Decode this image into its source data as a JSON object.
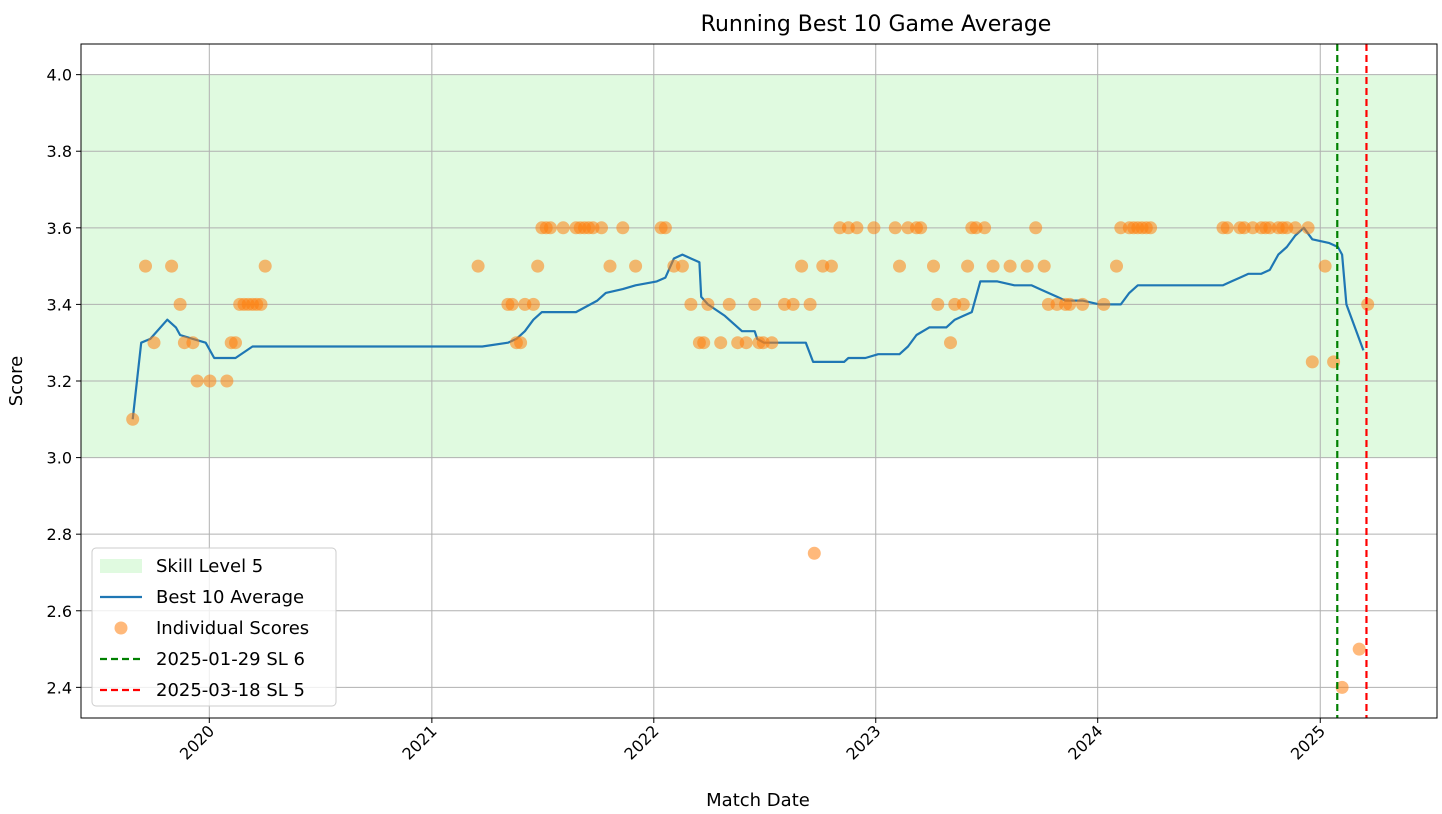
{
  "chart_data": {
    "type": "line",
    "title": "Running Best 10 Game Average",
    "xlabel": "Match Date",
    "ylabel": "Score",
    "xlim": [
      "2019-06-04",
      "2025-07-12"
    ],
    "ylim": [
      2.32,
      4.08
    ],
    "x_ticks": [
      "2020",
      "2021",
      "2022",
      "2023",
      "2024",
      "2025"
    ],
    "y_ticks": [
      "2.4",
      "2.6",
      "2.8",
      "3.0",
      "3.2",
      "3.4",
      "3.6",
      "3.8",
      "4.0"
    ],
    "grid": true,
    "legend_position": "lower-left",
    "band": {
      "name": "Skill Level 5",
      "y0": 3.0,
      "y1": 4.0,
      "color": "#90ee90"
    },
    "series": [
      {
        "name": "Best 10 Average",
        "kind": "line",
        "color": "#1f77b4",
        "points": [
          [
            "2019-08-28",
            3.1
          ],
          [
            "2019-09-11",
            3.3
          ],
          [
            "2019-09-26",
            3.31
          ],
          [
            "2019-10-24",
            3.36
          ],
          [
            "2019-11-07",
            3.34
          ],
          [
            "2019-11-14",
            3.32
          ],
          [
            "2019-12-05",
            3.31
          ],
          [
            "2019-12-26",
            3.3
          ],
          [
            "2020-01-09",
            3.26
          ],
          [
            "2020-02-13",
            3.26
          ],
          [
            "2020-03-12",
            3.29
          ],
          [
            "2021-03-25",
            3.29
          ],
          [
            "2021-05-06",
            3.3
          ],
          [
            "2021-05-20",
            3.31
          ],
          [
            "2021-06-03",
            3.33
          ],
          [
            "2021-06-17",
            3.36
          ],
          [
            "2021-07-01",
            3.38
          ],
          [
            "2021-08-26",
            3.38
          ],
          [
            "2021-09-30",
            3.41
          ],
          [
            "2021-10-14",
            3.43
          ],
          [
            "2021-11-11",
            3.44
          ],
          [
            "2021-12-02",
            3.45
          ],
          [
            "2022-01-06",
            3.46
          ],
          [
            "2022-01-20",
            3.47
          ],
          [
            "2022-02-03",
            3.52
          ],
          [
            "2022-02-17",
            3.53
          ],
          [
            "2022-03-03",
            3.52
          ],
          [
            "2022-03-17",
            3.51
          ],
          [
            "2022-03-20",
            3.42
          ],
          [
            "2022-03-31",
            3.4
          ],
          [
            "2022-04-28",
            3.37
          ],
          [
            "2022-05-26",
            3.33
          ],
          [
            "2022-06-16",
            3.33
          ],
          [
            "2022-06-20",
            3.31
          ],
          [
            "2022-07-01",
            3.3
          ],
          [
            "2022-09-08",
            3.3
          ],
          [
            "2022-09-20",
            3.25
          ],
          [
            "2022-10-27",
            3.25
          ],
          [
            "2022-11-10",
            3.25
          ],
          [
            "2022-11-17",
            3.26
          ],
          [
            "2022-12-15",
            3.26
          ],
          [
            "2023-01-05",
            3.27
          ],
          [
            "2023-02-09",
            3.27
          ],
          [
            "2023-02-23",
            3.29
          ],
          [
            "2023-03-09",
            3.32
          ],
          [
            "2023-03-30",
            3.34
          ],
          [
            "2023-04-27",
            3.34
          ],
          [
            "2023-05-11",
            3.36
          ],
          [
            "2023-05-25",
            3.37
          ],
          [
            "2023-06-08",
            3.38
          ],
          [
            "2023-06-22",
            3.46
          ],
          [
            "2023-07-20",
            3.46
          ],
          [
            "2023-08-17",
            3.45
          ],
          [
            "2023-09-14",
            3.45
          ],
          [
            "2023-09-28",
            3.44
          ],
          [
            "2023-10-26",
            3.42
          ],
          [
            "2023-11-09",
            3.41
          ],
          [
            "2023-12-07",
            3.41
          ],
          [
            "2024-01-04",
            3.4
          ],
          [
            "2024-01-25",
            3.4
          ],
          [
            "2024-02-08",
            3.4
          ],
          [
            "2024-02-22",
            3.43
          ],
          [
            "2024-03-07",
            3.45
          ],
          [
            "2024-07-25",
            3.45
          ],
          [
            "2024-08-08",
            3.46
          ],
          [
            "2024-08-22",
            3.47
          ],
          [
            "2024-09-05",
            3.48
          ],
          [
            "2024-09-26",
            3.48
          ],
          [
            "2024-10-10",
            3.49
          ],
          [
            "2024-10-24",
            3.53
          ],
          [
            "2024-11-07",
            3.55
          ],
          [
            "2024-11-21",
            3.58
          ],
          [
            "2024-12-05",
            3.6
          ],
          [
            "2024-12-19",
            3.57
          ],
          [
            "2025-01-16",
            3.56
          ],
          [
            "2025-01-30",
            3.55
          ],
          [
            "2025-02-06",
            3.53
          ],
          [
            "2025-02-13",
            3.4
          ],
          [
            "2025-03-13",
            3.28
          ]
        ]
      },
      {
        "name": "Individual Scores",
        "kind": "scatter",
        "color": "#ff7f0e",
        "points": [
          [
            "2019-08-28",
            3.1
          ],
          [
            "2019-09-18",
            3.5
          ],
          [
            "2019-10-02",
            3.3
          ],
          [
            "2019-10-31",
            3.5
          ],
          [
            "2019-11-14",
            3.4
          ],
          [
            "2019-11-21",
            3.3
          ],
          [
            "2019-12-05",
            3.3
          ],
          [
            "2019-12-12",
            3.2
          ],
          [
            "2020-01-02",
            3.2
          ],
          [
            "2020-01-30",
            3.2
          ],
          [
            "2020-02-06",
            3.3
          ],
          [
            "2020-02-13",
            3.3
          ],
          [
            "2020-02-20",
            3.4
          ],
          [
            "2020-02-27",
            3.4
          ],
          [
            "2020-03-05",
            3.4
          ],
          [
            "2020-03-12",
            3.4
          ],
          [
            "2020-03-19",
            3.4
          ],
          [
            "2020-03-26",
            3.4
          ],
          [
            "2020-04-02",
            3.5
          ],
          [
            "2021-03-18",
            3.5
          ],
          [
            "2021-05-06",
            3.4
          ],
          [
            "2021-05-13",
            3.4
          ],
          [
            "2021-05-20",
            3.3
          ],
          [
            "2021-05-27",
            3.3
          ],
          [
            "2021-06-03",
            3.4
          ],
          [
            "2021-06-17",
            3.4
          ],
          [
            "2021-06-24",
            3.5
          ],
          [
            "2021-07-01",
            3.6
          ],
          [
            "2021-07-08",
            3.6
          ],
          [
            "2021-07-15",
            3.6
          ],
          [
            "2021-08-05",
            3.6
          ],
          [
            "2021-08-26",
            3.6
          ],
          [
            "2021-09-02",
            3.6
          ],
          [
            "2021-09-09",
            3.6
          ],
          [
            "2021-09-16",
            3.6
          ],
          [
            "2021-09-23",
            3.6
          ],
          [
            "2021-10-07",
            3.6
          ],
          [
            "2021-10-21",
            3.5
          ],
          [
            "2021-11-11",
            3.6
          ],
          [
            "2021-12-02",
            3.5
          ],
          [
            "2022-01-13",
            3.6
          ],
          [
            "2022-01-20",
            3.6
          ],
          [
            "2022-02-03",
            3.5
          ],
          [
            "2022-02-17",
            3.5
          ],
          [
            "2022-03-03",
            3.4
          ],
          [
            "2022-03-17",
            3.3
          ],
          [
            "2022-03-24",
            3.3
          ],
          [
            "2022-03-31",
            3.4
          ],
          [
            "2022-04-21",
            3.3
          ],
          [
            "2022-05-05",
            3.4
          ],
          [
            "2022-05-19",
            3.3
          ],
          [
            "2022-06-02",
            3.3
          ],
          [
            "2022-06-16",
            3.4
          ],
          [
            "2022-06-23",
            3.3
          ],
          [
            "2022-06-30",
            3.3
          ],
          [
            "2022-07-14",
            3.3
          ],
          [
            "2022-08-04",
            3.4
          ],
          [
            "2022-08-18",
            3.4
          ],
          [
            "2022-09-01",
            3.5
          ],
          [
            "2022-09-15",
            3.4
          ],
          [
            "2022-09-22",
            2.75
          ],
          [
            "2022-10-06",
            3.5
          ],
          [
            "2022-10-20",
            3.5
          ],
          [
            "2022-11-03",
            3.6
          ],
          [
            "2022-11-17",
            3.6
          ],
          [
            "2022-12-01",
            3.6
          ],
          [
            "2022-12-29",
            3.6
          ],
          [
            "2023-02-02",
            3.6
          ],
          [
            "2023-02-09",
            3.5
          ],
          [
            "2023-02-23",
            3.6
          ],
          [
            "2023-03-09",
            3.6
          ],
          [
            "2023-03-16",
            3.6
          ],
          [
            "2023-04-06",
            3.5
          ],
          [
            "2023-04-13",
            3.4
          ],
          [
            "2023-05-04",
            3.3
          ],
          [
            "2023-05-11",
            3.4
          ],
          [
            "2023-05-25",
            3.4
          ],
          [
            "2023-06-01",
            3.5
          ],
          [
            "2023-06-08",
            3.6
          ],
          [
            "2023-06-15",
            3.6
          ],
          [
            "2023-06-29",
            3.6
          ],
          [
            "2023-07-13",
            3.5
          ],
          [
            "2023-08-10",
            3.5
          ],
          [
            "2023-09-07",
            3.5
          ],
          [
            "2023-09-21",
            3.6
          ],
          [
            "2023-10-05",
            3.5
          ],
          [
            "2023-10-12",
            3.4
          ],
          [
            "2023-10-26",
            3.4
          ],
          [
            "2023-11-09",
            3.4
          ],
          [
            "2023-11-16",
            3.4
          ],
          [
            "2023-12-07",
            3.4
          ],
          [
            "2024-01-11",
            3.4
          ],
          [
            "2024-02-01",
            3.5
          ],
          [
            "2024-02-08",
            3.6
          ],
          [
            "2024-02-22",
            3.6
          ],
          [
            "2024-02-29",
            3.6
          ],
          [
            "2024-03-07",
            3.6
          ],
          [
            "2024-03-14",
            3.6
          ],
          [
            "2024-03-21",
            3.6
          ],
          [
            "2024-03-28",
            3.6
          ],
          [
            "2024-07-25",
            3.6
          ],
          [
            "2024-08-01",
            3.6
          ],
          [
            "2024-08-22",
            3.6
          ],
          [
            "2024-08-29",
            3.6
          ],
          [
            "2024-09-12",
            3.6
          ],
          [
            "2024-09-26",
            3.6
          ],
          [
            "2024-10-03",
            3.6
          ],
          [
            "2024-10-10",
            3.6
          ],
          [
            "2024-10-24",
            3.6
          ],
          [
            "2024-10-31",
            3.6
          ],
          [
            "2024-11-07",
            3.6
          ],
          [
            "2024-11-21",
            3.6
          ],
          [
            "2024-12-12",
            3.6
          ],
          [
            "2024-12-19",
            3.25
          ],
          [
            "2025-01-09",
            3.5
          ],
          [
            "2025-01-23",
            3.25
          ],
          [
            "2025-02-06",
            2.4
          ],
          [
            "2025-03-06",
            2.5
          ],
          [
            "2025-03-20",
            3.4
          ]
        ]
      }
    ],
    "vlines": [
      {
        "label": "2025-01-29 SL 6",
        "x": "2025-01-29",
        "color": "#008000",
        "style": "dashed"
      },
      {
        "label": "2025-03-18 SL 5",
        "x": "2025-03-18",
        "color": "#ff0000",
        "style": "dashed"
      }
    ]
  }
}
